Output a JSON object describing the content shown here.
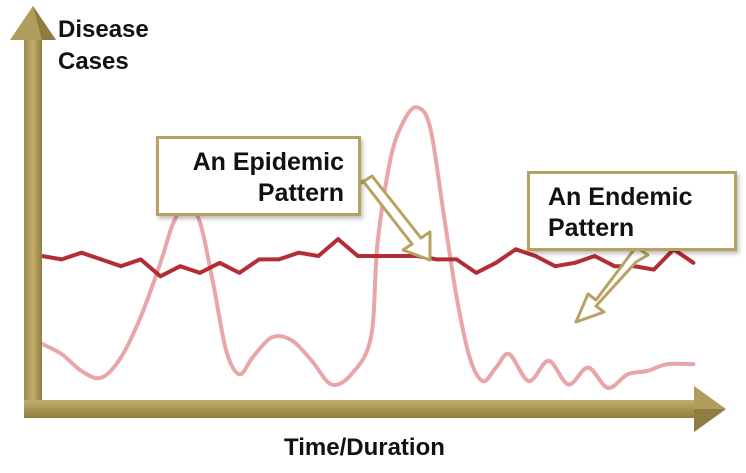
{
  "chart_data": {
    "type": "line",
    "ylabel": "Disease\nCases",
    "xlabel": "Time/Duration",
    "xlim": [
      0,
      100
    ],
    "ylim": [
      0,
      100
    ],
    "annotations": [
      {
        "text_line1": "An Epidemic",
        "text_line2": "Pattern",
        "points_to": "Epidemic"
      },
      {
        "text_line1": "An Endemic",
        "text_line2": "Pattern",
        "points_to": "Endemic"
      }
    ],
    "series": [
      {
        "key": "Endemic",
        "color": "#b22d35",
        "x": [
          0,
          3,
          6,
          9,
          12,
          15,
          18,
          21,
          24,
          27,
          30,
          33,
          36,
          39,
          42,
          45,
          48,
          51,
          54,
          57,
          60,
          63,
          66,
          69,
          72,
          75,
          78,
          81,
          84,
          87,
          90,
          93,
          96,
          99
        ],
        "y": [
          42,
          41,
          43,
          41,
          39,
          41,
          36,
          39,
          37,
          40,
          37,
          41,
          41,
          43,
          42,
          47,
          42,
          42,
          42,
          42,
          41,
          41,
          37,
          40,
          44,
          42,
          39,
          40,
          42,
          39,
          39,
          38,
          44,
          40
        ]
      },
      {
        "key": "Epidemic",
        "color": "#e8a6a9",
        "x": [
          0,
          3,
          6,
          9,
          12,
          15,
          18,
          20,
          22,
          24,
          26,
          28,
          30,
          32,
          35,
          38,
          41,
          44,
          47,
          50,
          51,
          53,
          55,
          57,
          59,
          61,
          63,
          65,
          67,
          69,
          71,
          74,
          77,
          80,
          83,
          86,
          89,
          92,
          95,
          99
        ],
        "y": [
          16,
          13,
          8,
          6,
          12,
          24,
          40,
          52,
          57,
          52,
          34,
          14,
          7,
          12,
          18,
          17,
          11,
          4,
          7,
          18,
          46,
          71,
          82,
          86,
          80,
          55,
          30,
          12,
          5,
          9,
          13,
          5,
          11,
          4,
          9,
          3,
          7,
          8,
          10,
          10
        ]
      }
    ]
  }
}
